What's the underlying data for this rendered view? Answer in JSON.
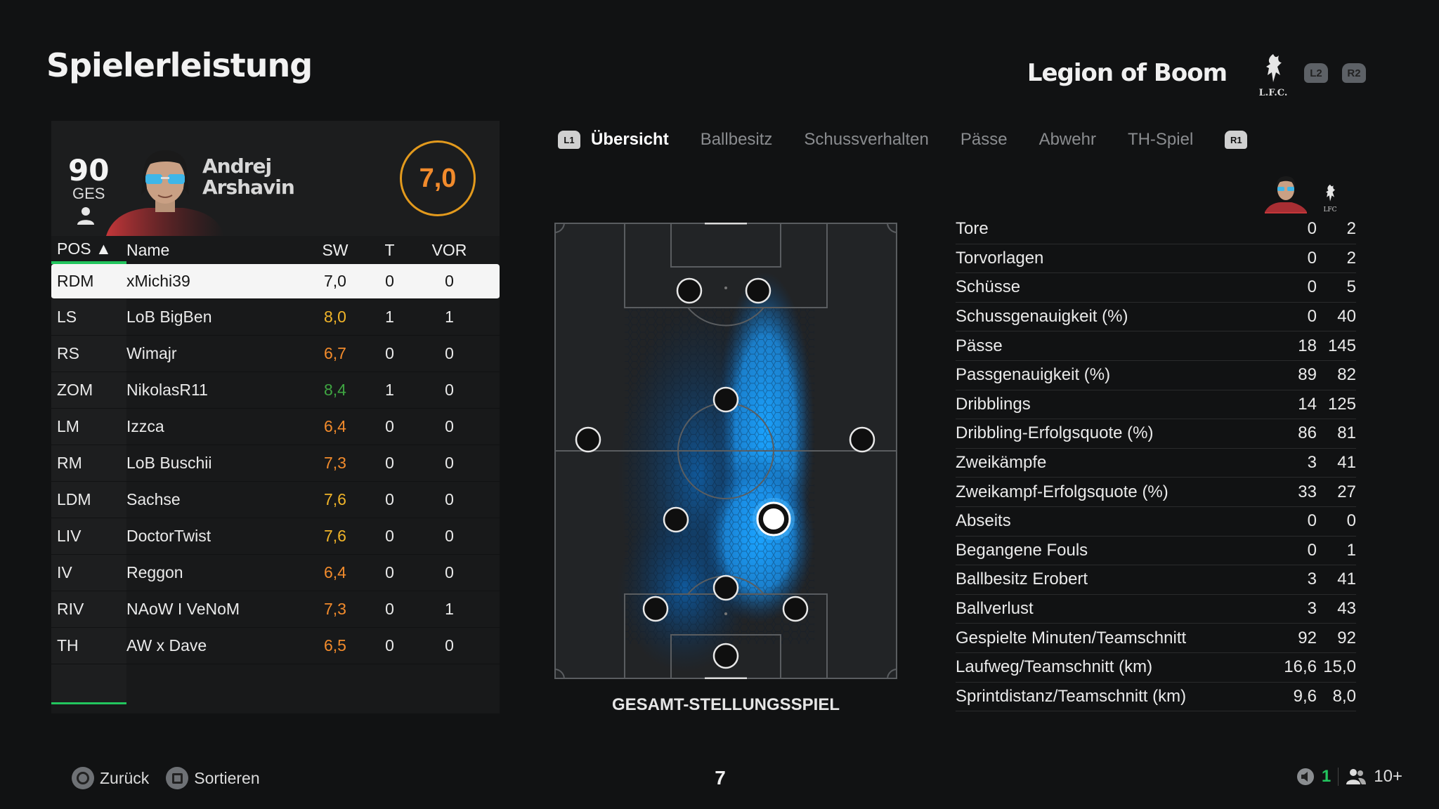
{
  "page_title": "Spielerleistung",
  "team": {
    "name": "Legion of Boom",
    "crest_text": "L.F.C.",
    "buttons": [
      "L2",
      "R2"
    ]
  },
  "player": {
    "overall": "90",
    "overall_label": "GES",
    "first_name": "Andrej",
    "last_name": "Arshavin",
    "rating": "7,0"
  },
  "table": {
    "headers": {
      "pos": "POS ▲",
      "name": "Name",
      "sw": "SW",
      "t": "T",
      "vor": "VOR"
    },
    "rows": [
      {
        "pos": "RDM",
        "name": "xMichi39",
        "sw": "7,0",
        "t": "0",
        "vor": "0",
        "color": "#151515"
      },
      {
        "pos": "LS",
        "name": "LoB BigBen",
        "sw": "8,0",
        "t": "1",
        "vor": "1",
        "color": "#f0b429"
      },
      {
        "pos": "RS",
        "name": "Wimajr",
        "sw": "6,7",
        "t": "0",
        "vor": "0",
        "color": "#f28b2c"
      },
      {
        "pos": "ZOM",
        "name": "NikolasR11",
        "sw": "8,4",
        "t": "1",
        "vor": "0",
        "color": "#3ea541"
      },
      {
        "pos": "LM",
        "name": "Izzca",
        "sw": "6,4",
        "t": "0",
        "vor": "0",
        "color": "#f28b2c"
      },
      {
        "pos": "RM",
        "name": "LoB Buschii",
        "sw": "7,3",
        "t": "0",
        "vor": "0",
        "color": "#f28b2c"
      },
      {
        "pos": "LDM",
        "name": "Sachse",
        "sw": "7,6",
        "t": "0",
        "vor": "0",
        "color": "#f0b429"
      },
      {
        "pos": "LIV",
        "name": "DoctorTwist",
        "sw": "7,6",
        "t": "0",
        "vor": "0",
        "color": "#f0b429"
      },
      {
        "pos": "IV",
        "name": "Reggon",
        "sw": "6,4",
        "t": "0",
        "vor": "0",
        "color": "#f28b2c"
      },
      {
        "pos": "RIV",
        "name": "NAoW I VeNoM",
        "sw": "7,3",
        "t": "0",
        "vor": "1",
        "color": "#f28b2c"
      },
      {
        "pos": "TH",
        "name": "AW x Dave",
        "sw": "6,5",
        "t": "0",
        "vor": "0",
        "color": "#f28b2c"
      }
    ]
  },
  "tabs": {
    "left_button": "L1",
    "right_button": "R1",
    "items": [
      "Übersicht",
      "Ballbesitz",
      "Schussverhalten",
      "Pässe",
      "Abwehr",
      "TH-Spiel"
    ],
    "active_index": 0
  },
  "pitch": {
    "caption": "GESAMT-STELLUNGSSPIEL",
    "heatmap_color": "#1e90ff"
  },
  "stats": {
    "crest_text": "LFC",
    "rows": [
      {
        "label": "Tore",
        "player": "0",
        "team": "2"
      },
      {
        "label": "Torvorlagen",
        "player": "0",
        "team": "2"
      },
      {
        "label": "Schüsse",
        "player": "0",
        "team": "5"
      },
      {
        "label": "Schussgenauigkeit (%)",
        "player": "0",
        "team": "40"
      },
      {
        "label": "Pässe",
        "player": "18",
        "team": "145"
      },
      {
        "label": "Passgenauigkeit (%)",
        "player": "89",
        "team": "82"
      },
      {
        "label": "Dribblings",
        "player": "14",
        "team": "125"
      },
      {
        "label": "Dribbling-Erfolgsquote (%)",
        "player": "86",
        "team": "81"
      },
      {
        "label": "Zweikämpfe",
        "player": "3",
        "team": "41"
      },
      {
        "label": "Zweikampf-Erfolgsquote (%)",
        "player": "33",
        "team": "27"
      },
      {
        "label": "Abseits",
        "player": "0",
        "team": "0"
      },
      {
        "label": "Begangene Fouls",
        "player": "0",
        "team": "1"
      },
      {
        "label": "Ballbesitz Erobert",
        "player": "3",
        "team": "41"
      },
      {
        "label": "Ballverlust",
        "player": "3",
        "team": "43"
      },
      {
        "label": "Gespielte Minuten/Teamschnitt",
        "player": "92",
        "team": "92"
      },
      {
        "label": "Laufweg/Teamschnitt (km)",
        "player": "16,6",
        "team": "15,0"
      },
      {
        "label": "Sprintdistanz/Teamschnitt (km)",
        "player": "9,6",
        "team": "8,0"
      }
    ]
  },
  "footer": {
    "back_label": "Zurück",
    "sort_label": "Sortieren",
    "page_number": "7",
    "mic_count": "1",
    "players_count": "10+"
  }
}
